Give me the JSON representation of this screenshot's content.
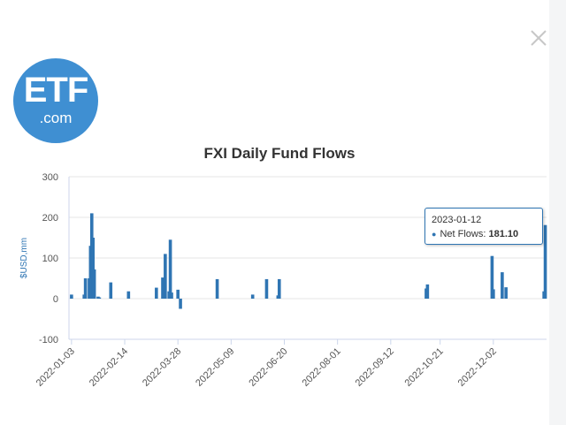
{
  "modal": {
    "close_icon": "close-icon",
    "logo": {
      "main": "ETF",
      "sub": ".com",
      "color": "#3f8fd2"
    }
  },
  "tooltip": {
    "date": "2023-01-12",
    "label": "Net Flows:",
    "value": "181.10"
  },
  "chart_data": {
    "type": "bar",
    "title": "FXI Daily Fund Flows",
    "ylabel": "$USD,mm",
    "xlabel": "",
    "ylim": [
      -100,
      300
    ],
    "y_ticks": [
      300,
      200,
      100,
      0,
      -100
    ],
    "x_ticks": [
      "2022-01-03",
      "2022-02-14",
      "2022-03-28",
      "2022-05-09",
      "2022-06-20",
      "2022-08-01",
      "2022-09-12",
      "2022-10-21",
      "2022-12-02"
    ],
    "x_range": [
      "2022-01-01",
      "2023-01-13"
    ],
    "grid": true,
    "legend": "none",
    "bar_color": "#2f75b3",
    "series": [
      {
        "x": [
          "2022-01-03",
          "2022-01-13",
          "2022-01-14",
          "2022-01-17",
          "2022-01-18",
          "2022-01-19",
          "2022-01-20",
          "2022-01-21",
          "2022-01-24",
          "2022-01-25",
          "2022-02-03",
          "2022-02-17",
          "2022-03-11",
          "2022-03-16",
          "2022-03-17",
          "2022-03-18",
          "2022-03-21",
          "2022-03-22",
          "2022-03-23",
          "2022-03-28",
          "2022-03-30",
          "2022-04-28",
          "2022-05-26",
          "2022-06-06",
          "2022-06-15",
          "2022-06-16",
          "2022-10-10",
          "2022-10-11",
          "2022-12-01",
          "2022-12-02",
          "2022-12-09",
          "2022-12-12",
          "2023-01-11",
          "2023-01-12"
        ],
        "values": [
          10,
          10,
          50,
          50,
          130,
          210,
          150,
          72,
          5,
          3,
          40,
          18,
          27,
          52,
          20,
          110,
          18,
          145,
          15,
          22,
          -25,
          48,
          10,
          48,
          8,
          48,
          25,
          35,
          105,
          23,
          65,
          28,
          18,
          181.1
        ]
      }
    ]
  }
}
